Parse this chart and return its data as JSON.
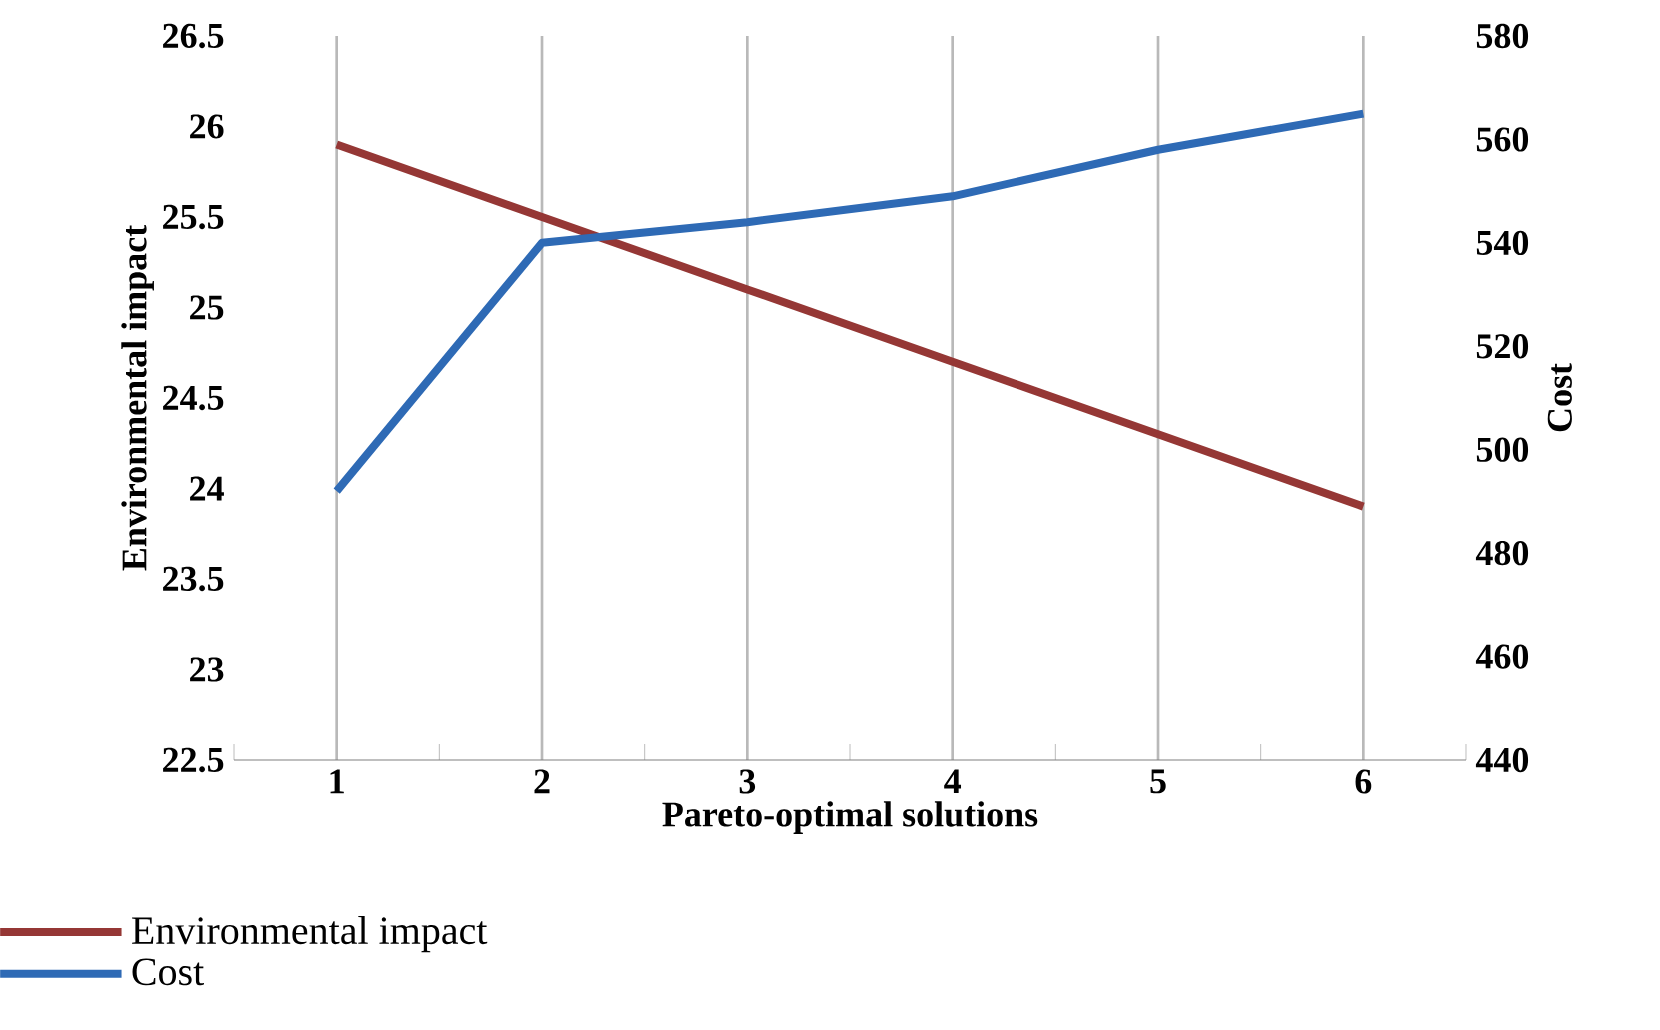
{
  "chart_data": {
    "type": "line",
    "xlabel": "Pareto-optimal solutions",
    "ylabel": "Environmental impact",
    "y2label": "Cost",
    "categories": [
      "1",
      "2",
      "3",
      "4",
      "5",
      "6"
    ],
    "series": [
      {
        "name": "Environmental impact",
        "color": "#953735",
        "values": [
          25.9,
          25.5,
          25.1,
          24.7,
          24.3,
          23.9
        ]
      },
      {
        "name": "Cost",
        "color": "#2e6ab5",
        "axis": "y2",
        "values": [
          492,
          540,
          544,
          549,
          558,
          565
        ]
      }
    ],
    "ylim": [
      22.5,
      26.5
    ],
    "yticks": [
      22.5,
      23,
      23.5,
      24,
      24.5,
      25,
      25.5,
      26,
      26.5
    ],
    "y2lim": [
      440,
      580
    ],
    "y2ticks": [
      440,
      460,
      480,
      500,
      520,
      540,
      560,
      580
    ],
    "grid": "x",
    "legend": "bottom left",
    "marker": "none",
    "line_style": "solid"
  }
}
